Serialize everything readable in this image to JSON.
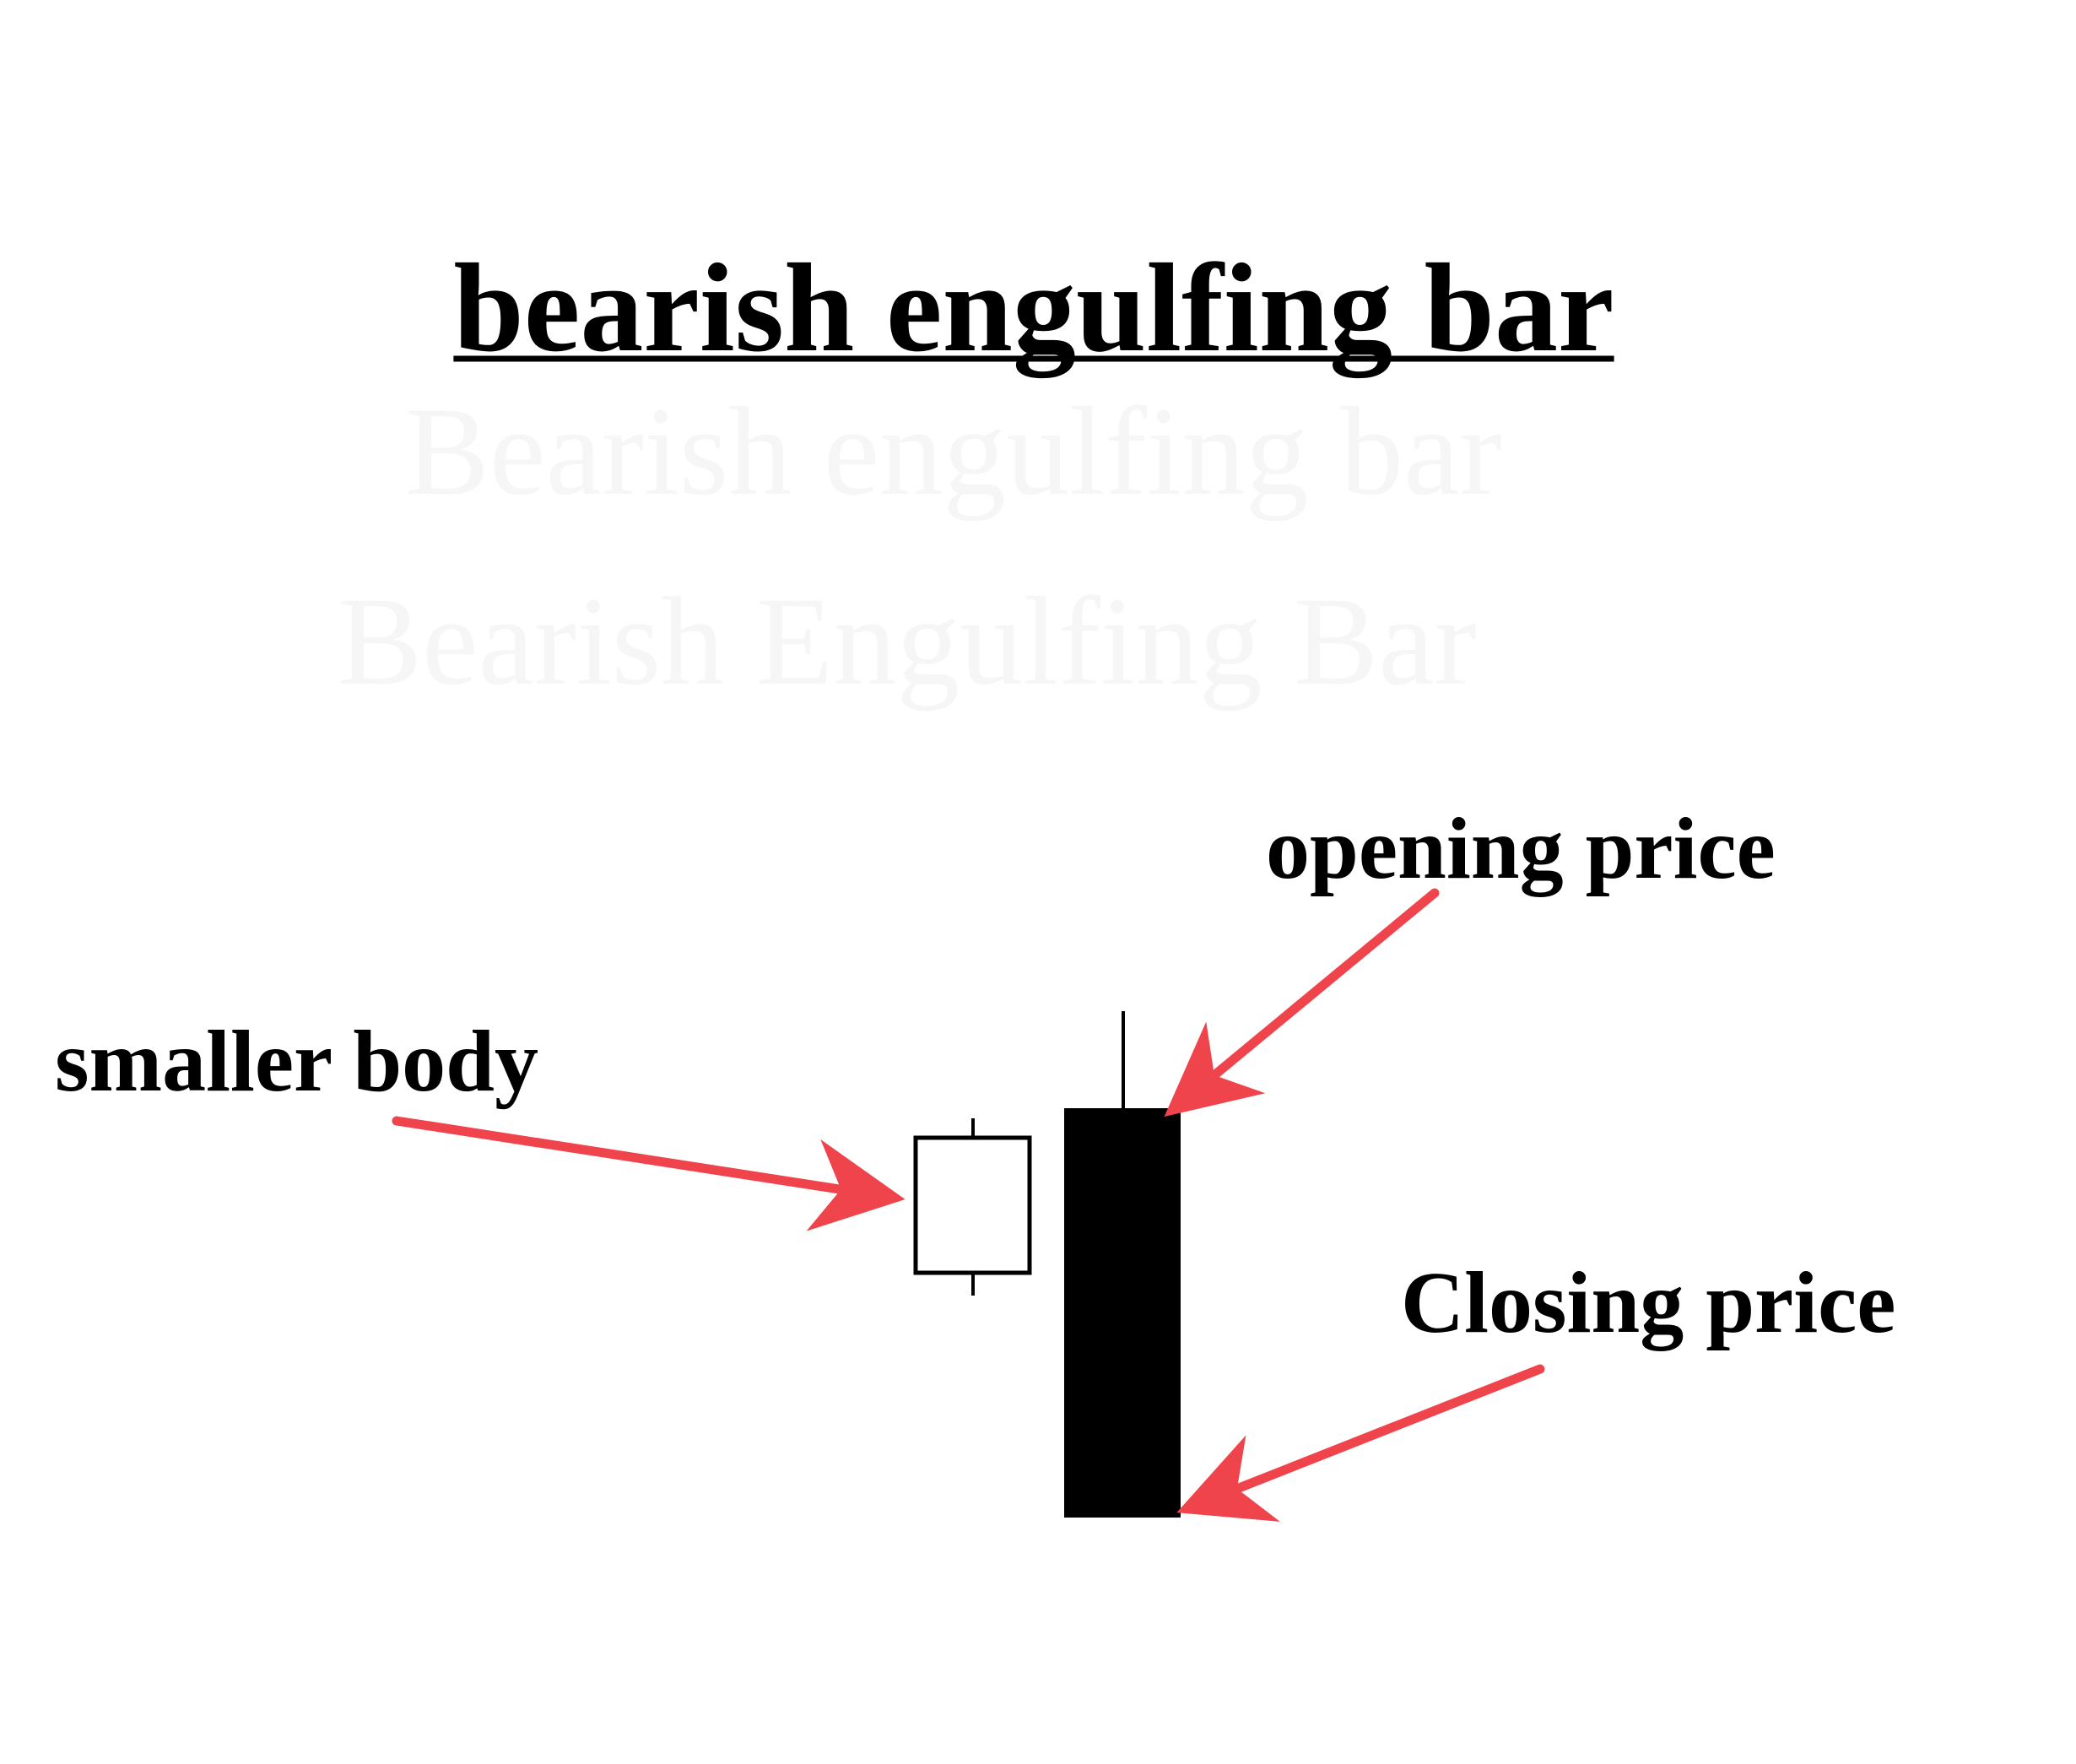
{
  "title": "bearish engulfing bar",
  "labels": {
    "smaller_body": "smaller body",
    "opening_price": "opening price",
    "closing_price": "Closing price"
  },
  "ghost_text": {
    "line1": "Bearish engulfing bar",
    "line2": "Bearish Engulfing Bar"
  },
  "colors": {
    "arrow": "#f0444c",
    "text": "#000000",
    "bearish_body": "#000000",
    "bullish_body": "#ffffff",
    "ghost": "#f6f6f6"
  },
  "icons": {
    "bullish_candle": "small-white-candlestick",
    "bearish_candle": "large-black-candlestick",
    "pointer": "red-arrow"
  }
}
